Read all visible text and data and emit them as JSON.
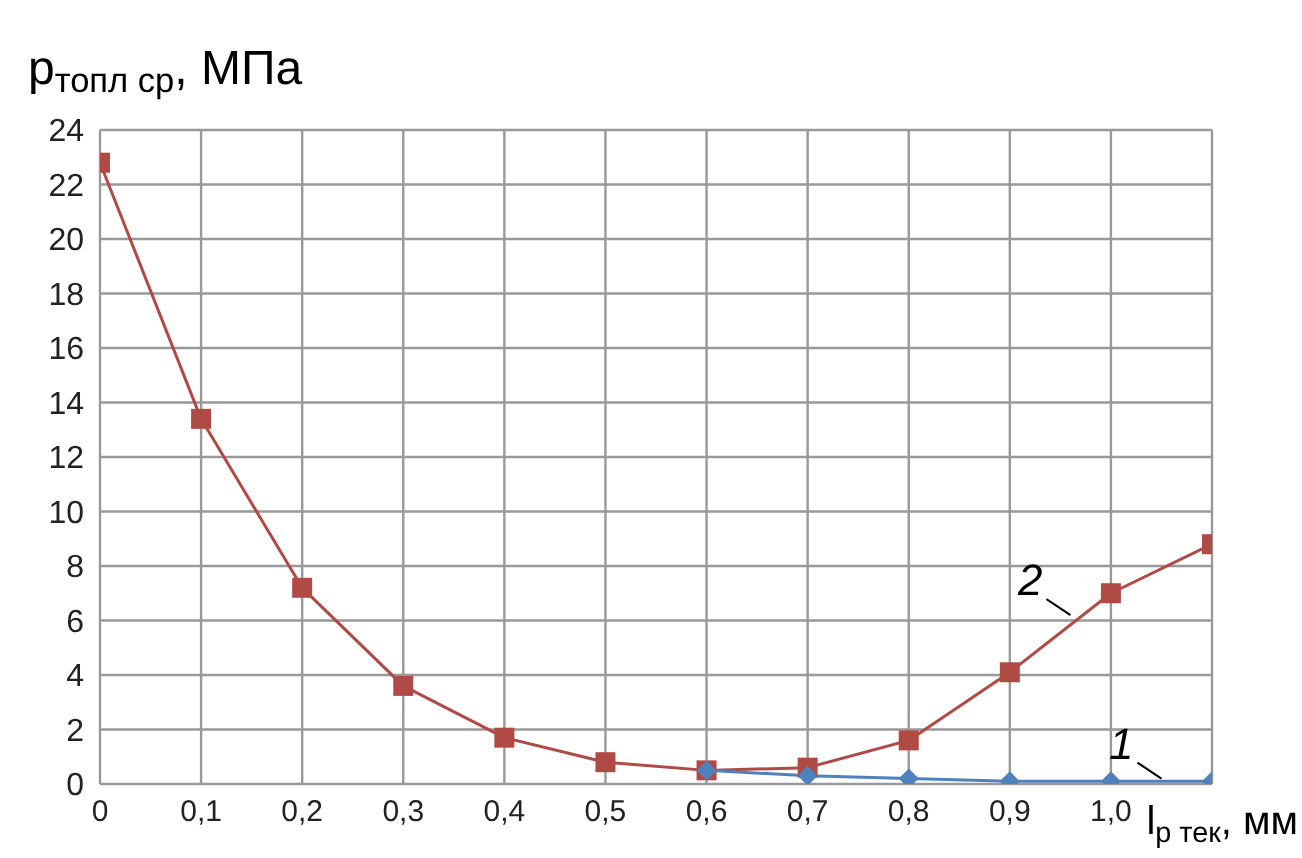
{
  "chart_data": {
    "type": "line",
    "ylabel": "p$_{топл ср}$, МПа",
    "xlabel": "l$_{р тек}$, мм",
    "x": [
      0,
      0.1,
      0.2,
      0.3,
      0.4,
      0.5,
      0.6,
      0.7,
      0.8,
      0.9,
      1.0,
      1.1
    ],
    "xlim": [
      0,
      1.1
    ],
    "xticks": [
      0,
      {
        "value": 0.1,
        "label": "0,1"
      },
      {
        "value": 0.2,
        "label": "0,2"
      },
      {
        "value": 0.3,
        "label": "0,3"
      },
      {
        "value": 0.4,
        "label": "0,4"
      },
      {
        "value": 0.5,
        "label": "0,5"
      },
      {
        "value": 0.6,
        "label": "0,6"
      },
      {
        "value": 0.7,
        "label": "0,7"
      },
      {
        "value": 0.8,
        "label": "0,8"
      },
      {
        "value": 0.9,
        "label": "0,9"
      },
      {
        "value": 1.0,
        "label": "1,0"
      },
      {
        "value": 1.1,
        "label": null
      }
    ],
    "ylim": [
      0,
      24
    ],
    "yticks": [
      0,
      2,
      4,
      6,
      8,
      10,
      12,
      14,
      16,
      18,
      20,
      22,
      24
    ],
    "grid": true,
    "series": [
      {
        "color": "#4f81bd",
        "marker": "diamond",
        "values": [
          null,
          null,
          null,
          null,
          null,
          null,
          0.5,
          0.3,
          0.2,
          0.1,
          0.1,
          0.1
        ]
      },
      {
        "color": "#b04a45",
        "marker": "square",
        "values": [
          22.8,
          13.4,
          7.2,
          3.6,
          1.7,
          0.8,
          0.5,
          0.6,
          1.6,
          4.1,
          7.0,
          8.8
        ]
      }
    ],
    "annotations": [
      {
        "text": "1",
        "x": 1.05,
        "y": 0.2
      },
      {
        "text": "2",
        "x": 0.96,
        "y": 6.2
      }
    ]
  }
}
